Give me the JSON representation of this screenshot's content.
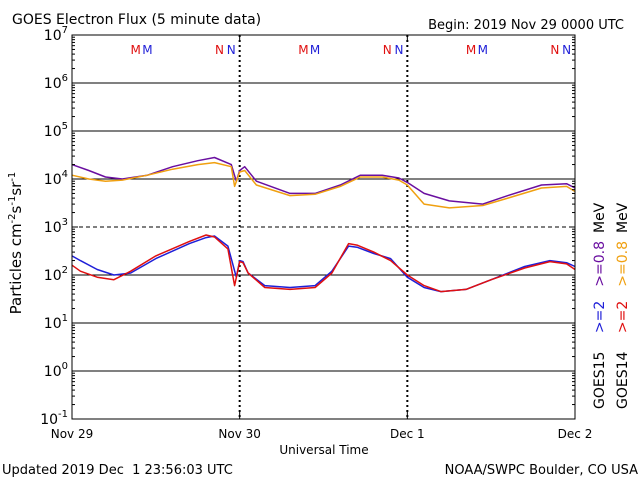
{
  "header": {
    "title": "GOES Electron Flux (5 minute data)",
    "begin": "Begin: 2019 Nov 29 0000 UTC"
  },
  "footer": {
    "updated": "Updated 2019 Dec  1 23:56:03 UTC",
    "credit": "NOAA/SWPC Boulder, CO USA"
  },
  "colors": {
    "goes15_2mev": "#1f1fd8",
    "goes15_08mev": "#6a0fa0",
    "goes14_2mev": "#e01010",
    "goes14_08mev": "#f0a010",
    "marker_m": "#e01010",
    "marker_n": "#1f1fd8"
  },
  "chart_data": {
    "type": "line",
    "title": "GOES Electron Flux (5 minute data)",
    "xlabel": "Universal Time",
    "ylabel_parts": [
      "Particles cm",
      "-2",
      "s",
      "-1",
      "sr",
      "-1"
    ],
    "y_scale": "log",
    "ylim_exp": [
      -1,
      7
    ],
    "y_ticks": [
      {
        "exp": -1,
        "base": "10",
        "sup": "-1"
      },
      {
        "exp": 0,
        "base": "10",
        "sup": "0"
      },
      {
        "exp": 1,
        "base": "10",
        "sup": "1"
      },
      {
        "exp": 2,
        "base": "10",
        "sup": "2"
      },
      {
        "exp": 3,
        "base": "10",
        "sup": "3"
      },
      {
        "exp": 4,
        "base": "10",
        "sup": "4"
      },
      {
        "exp": 5,
        "base": "10",
        "sup": "5"
      },
      {
        "exp": 6,
        "base": "10",
        "sup": "6"
      },
      {
        "exp": 7,
        "base": "10",
        "sup": "7"
      }
    ],
    "dashed_threshold_exp": 3,
    "x_unit": "days since 2019 Nov 29 0000 UTC",
    "xlim": [
      0,
      3
    ],
    "x_ticks": [
      {
        "x": 0,
        "label": "Nov 29"
      },
      {
        "x": 1,
        "label": "Nov 30"
      },
      {
        "x": 2,
        "label": "Dec 1"
      },
      {
        "x": 3,
        "label": "Dec 2"
      }
    ],
    "markers": [
      {
        "x": 0.38,
        "label": "M",
        "color": "marker_m"
      },
      {
        "x": 0.45,
        "label": "M",
        "color": "marker_n"
      },
      {
        "x": 0.88,
        "label": "N",
        "color": "marker_m"
      },
      {
        "x": 0.95,
        "label": "N",
        "color": "marker_n"
      },
      {
        "x": 1.38,
        "label": "M",
        "color": "marker_m"
      },
      {
        "x": 1.45,
        "label": "M",
        "color": "marker_n"
      },
      {
        "x": 1.88,
        "label": "N",
        "color": "marker_m"
      },
      {
        "x": 1.95,
        "label": "N",
        "color": "marker_n"
      },
      {
        "x": 2.38,
        "label": "M",
        "color": "marker_m"
      },
      {
        "x": 2.45,
        "label": "M",
        "color": "marker_n"
      },
      {
        "x": 2.88,
        "label": "N",
        "color": "marker_m"
      },
      {
        "x": 2.95,
        "label": "N",
        "color": "marker_n"
      }
    ],
    "day_boundaries": [
      1,
      2
    ],
    "legend": {
      "placement": "right",
      "goes15": {
        "sat": "GOES15",
        "e2": ">=2",
        "e08": ">=0.8",
        "unit": "MeV"
      },
      "goes14": {
        "sat": "GOES14",
        "e2": ">=2",
        "e08": ">=0.8",
        "unit": "MeV"
      }
    },
    "series": [
      {
        "name": "GOES15 >=0.8 MeV",
        "color": "goes15_08mev",
        "x": [
          0,
          0.1,
          0.2,
          0.3,
          0.45,
          0.6,
          0.75,
          0.85,
          0.95,
          0.98,
          1.0,
          1.03,
          1.1,
          1.3,
          1.45,
          1.6,
          1.72,
          1.85,
          1.95,
          2.0,
          2.1,
          2.25,
          2.45,
          2.6,
          2.8,
          2.95,
          3.0
        ],
        "y": [
          20000,
          15000,
          11000,
          10000,
          12000,
          18000,
          24000,
          28000,
          20000,
          9000,
          15000,
          18000,
          9000,
          5000,
          5000,
          7500,
          12000,
          12000,
          10500,
          8500,
          5000,
          3500,
          3000,
          4500,
          7500,
          8000,
          6500
        ]
      },
      {
        "name": "GOES14 >=0.8 MeV",
        "color": "goes14_08mev",
        "x": [
          0,
          0.1,
          0.2,
          0.3,
          0.45,
          0.6,
          0.75,
          0.85,
          0.95,
          0.97,
          1.0,
          1.03,
          1.1,
          1.3,
          1.45,
          1.6,
          1.72,
          1.85,
          1.95,
          2.0,
          2.1,
          2.25,
          2.45,
          2.6,
          2.8,
          2.95,
          3.0
        ],
        "y": [
          12000,
          10000,
          9000,
          9500,
          12000,
          16000,
          20000,
          22000,
          18000,
          7000,
          14000,
          15000,
          7500,
          4500,
          4800,
          7000,
          11000,
          11000,
          9500,
          7500,
          3000,
          2500,
          2800,
          4000,
          6500,
          7000,
          5500
        ]
      },
      {
        "name": "GOES15 >=2 MeV",
        "color": "goes15_2mev",
        "x": [
          0,
          0.05,
          0.15,
          0.25,
          0.35,
          0.5,
          0.7,
          0.8,
          0.85,
          0.93,
          0.98,
          1.0,
          1.02,
          1.05,
          1.15,
          1.3,
          1.45,
          1.55,
          1.65,
          1.7,
          1.8,
          1.9,
          2.0,
          2.1,
          2.2,
          2.35,
          2.5,
          2.7,
          2.85,
          2.95,
          3.0
        ],
        "y": [
          250,
          200,
          130,
          100,
          110,
          220,
          450,
          600,
          650,
          400,
          90,
          200,
          190,
          110,
          60,
          55,
          60,
          120,
          400,
          380,
          280,
          220,
          90,
          55,
          45,
          50,
          80,
          150,
          200,
          180,
          150
        ]
      },
      {
        "name": "GOES14 >=2 MeV",
        "color": "goes14_2mev",
        "x": [
          0,
          0.05,
          0.15,
          0.25,
          0.35,
          0.5,
          0.7,
          0.8,
          0.85,
          0.93,
          0.97,
          1.0,
          1.02,
          1.05,
          1.15,
          1.3,
          1.45,
          1.55,
          1.65,
          1.7,
          1.8,
          1.9,
          2.0,
          2.1,
          2.2,
          2.35,
          2.5,
          2.7,
          2.85,
          2.95,
          3.0
        ],
        "y": [
          160,
          120,
          90,
          80,
          120,
          250,
          500,
          680,
          620,
          350,
          60,
          190,
          180,
          110,
          55,
          50,
          55,
          110,
          450,
          420,
          300,
          200,
          100,
          60,
          45,
          50,
          80,
          140,
          190,
          170,
          130
        ]
      }
    ]
  }
}
